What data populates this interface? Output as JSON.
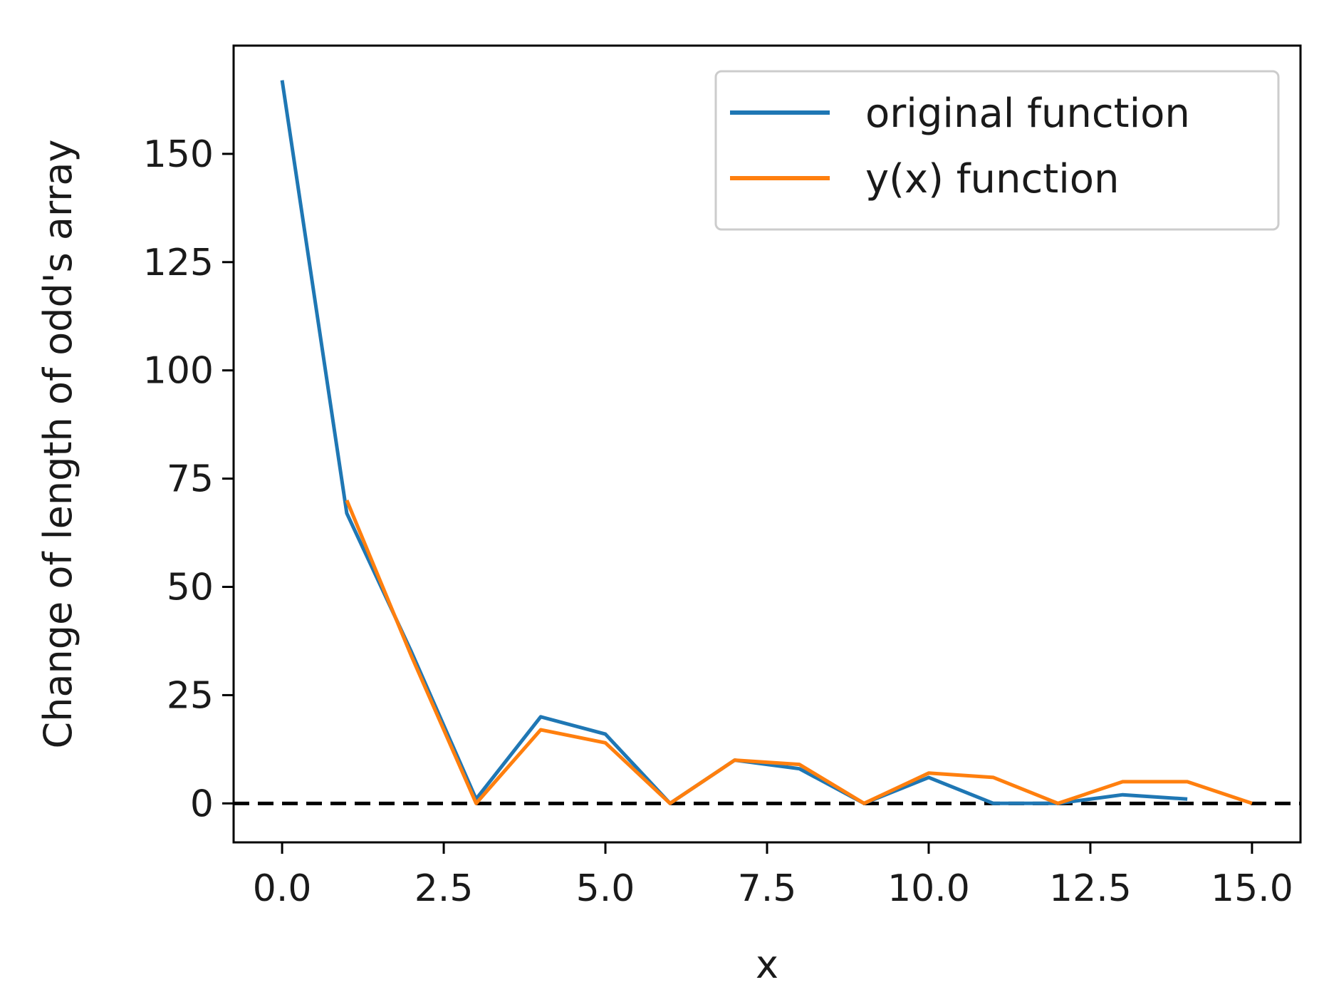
{
  "chart_data": {
    "type": "line",
    "xlabel": "x",
    "ylabel": "Change of length of odd's array",
    "xlim": [
      -0.75,
      15.75
    ],
    "ylim": [
      -9,
      175
    ],
    "xticks": [
      0.0,
      2.5,
      5.0,
      7.5,
      10.0,
      12.5,
      15.0
    ],
    "xtick_labels": [
      "0.0",
      "2.5",
      "5.0",
      "7.5",
      "10.0",
      "12.5",
      "15.0"
    ],
    "yticks": [
      0,
      25,
      50,
      75,
      100,
      125,
      150
    ],
    "ytick_labels": [
      "0",
      "25",
      "50",
      "75",
      "100",
      "125",
      "150"
    ],
    "grid": false,
    "legend_position": "top-right",
    "reference_line": {
      "y": 0,
      "style": "dashed",
      "color": "#000000"
    },
    "series": [
      {
        "name": "original function",
        "color": "#1f77b4",
        "x": [
          0,
          1,
          2,
          3,
          4,
          5,
          6,
          7,
          8,
          9,
          10,
          11,
          12,
          13,
          14
        ],
        "y": [
          167,
          67,
          35,
          1,
          20,
          16,
          0,
          10,
          8,
          0,
          6,
          0,
          0,
          2,
          1
        ]
      },
      {
        "name": "y(x) function",
        "color": "#ff7f0e",
        "x": [
          1,
          2,
          3,
          4,
          5,
          6,
          7,
          8,
          9,
          10,
          11,
          12,
          13,
          14,
          15
        ],
        "y": [
          70,
          34,
          0,
          17,
          14,
          0,
          10,
          9,
          0,
          7,
          6,
          0,
          5,
          5,
          0
        ]
      }
    ]
  }
}
